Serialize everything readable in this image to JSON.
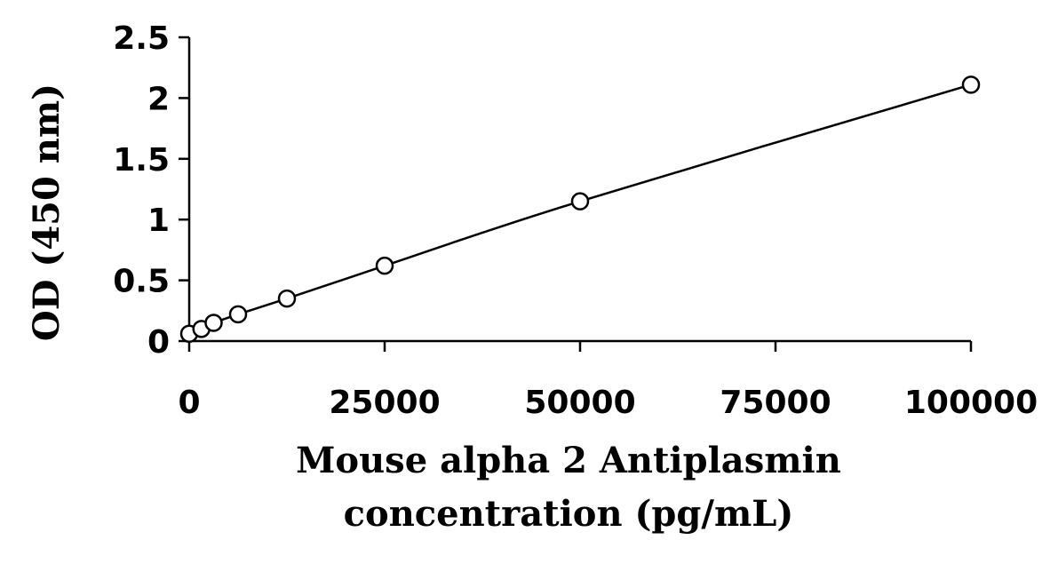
{
  "chart_data": {
    "type": "scatter",
    "title": "",
    "xlabel_lines": [
      "Mouse alpha 2 Antiplasmin",
      "concentration (pg/mL)"
    ],
    "ylabel": "OD (450 nm)",
    "xlim": [
      0,
      100000
    ],
    "ylim": [
      0,
      2.5
    ],
    "x_ticks": [
      0,
      25000,
      50000,
      75000,
      100000
    ],
    "x_tick_labels": [
      "0",
      "25000",
      "50000",
      "75000",
      "100000"
    ],
    "y_ticks": [
      0,
      0.5,
      1,
      1.5,
      2,
      2.5
    ],
    "y_tick_labels": [
      "0",
      "0.5",
      "1",
      "1.5",
      "2",
      "2.5"
    ],
    "grid": false,
    "legend": "none",
    "series": [
      {
        "marker": "open-circle",
        "line": "smooth",
        "x": [
          0,
          1562.5,
          3125,
          6250,
          12500,
          25000,
          50000,
          100000
        ],
        "y": [
          0.06,
          0.1,
          0.15,
          0.22,
          0.35,
          0.62,
          1.15,
          2.11
        ]
      }
    ]
  }
}
